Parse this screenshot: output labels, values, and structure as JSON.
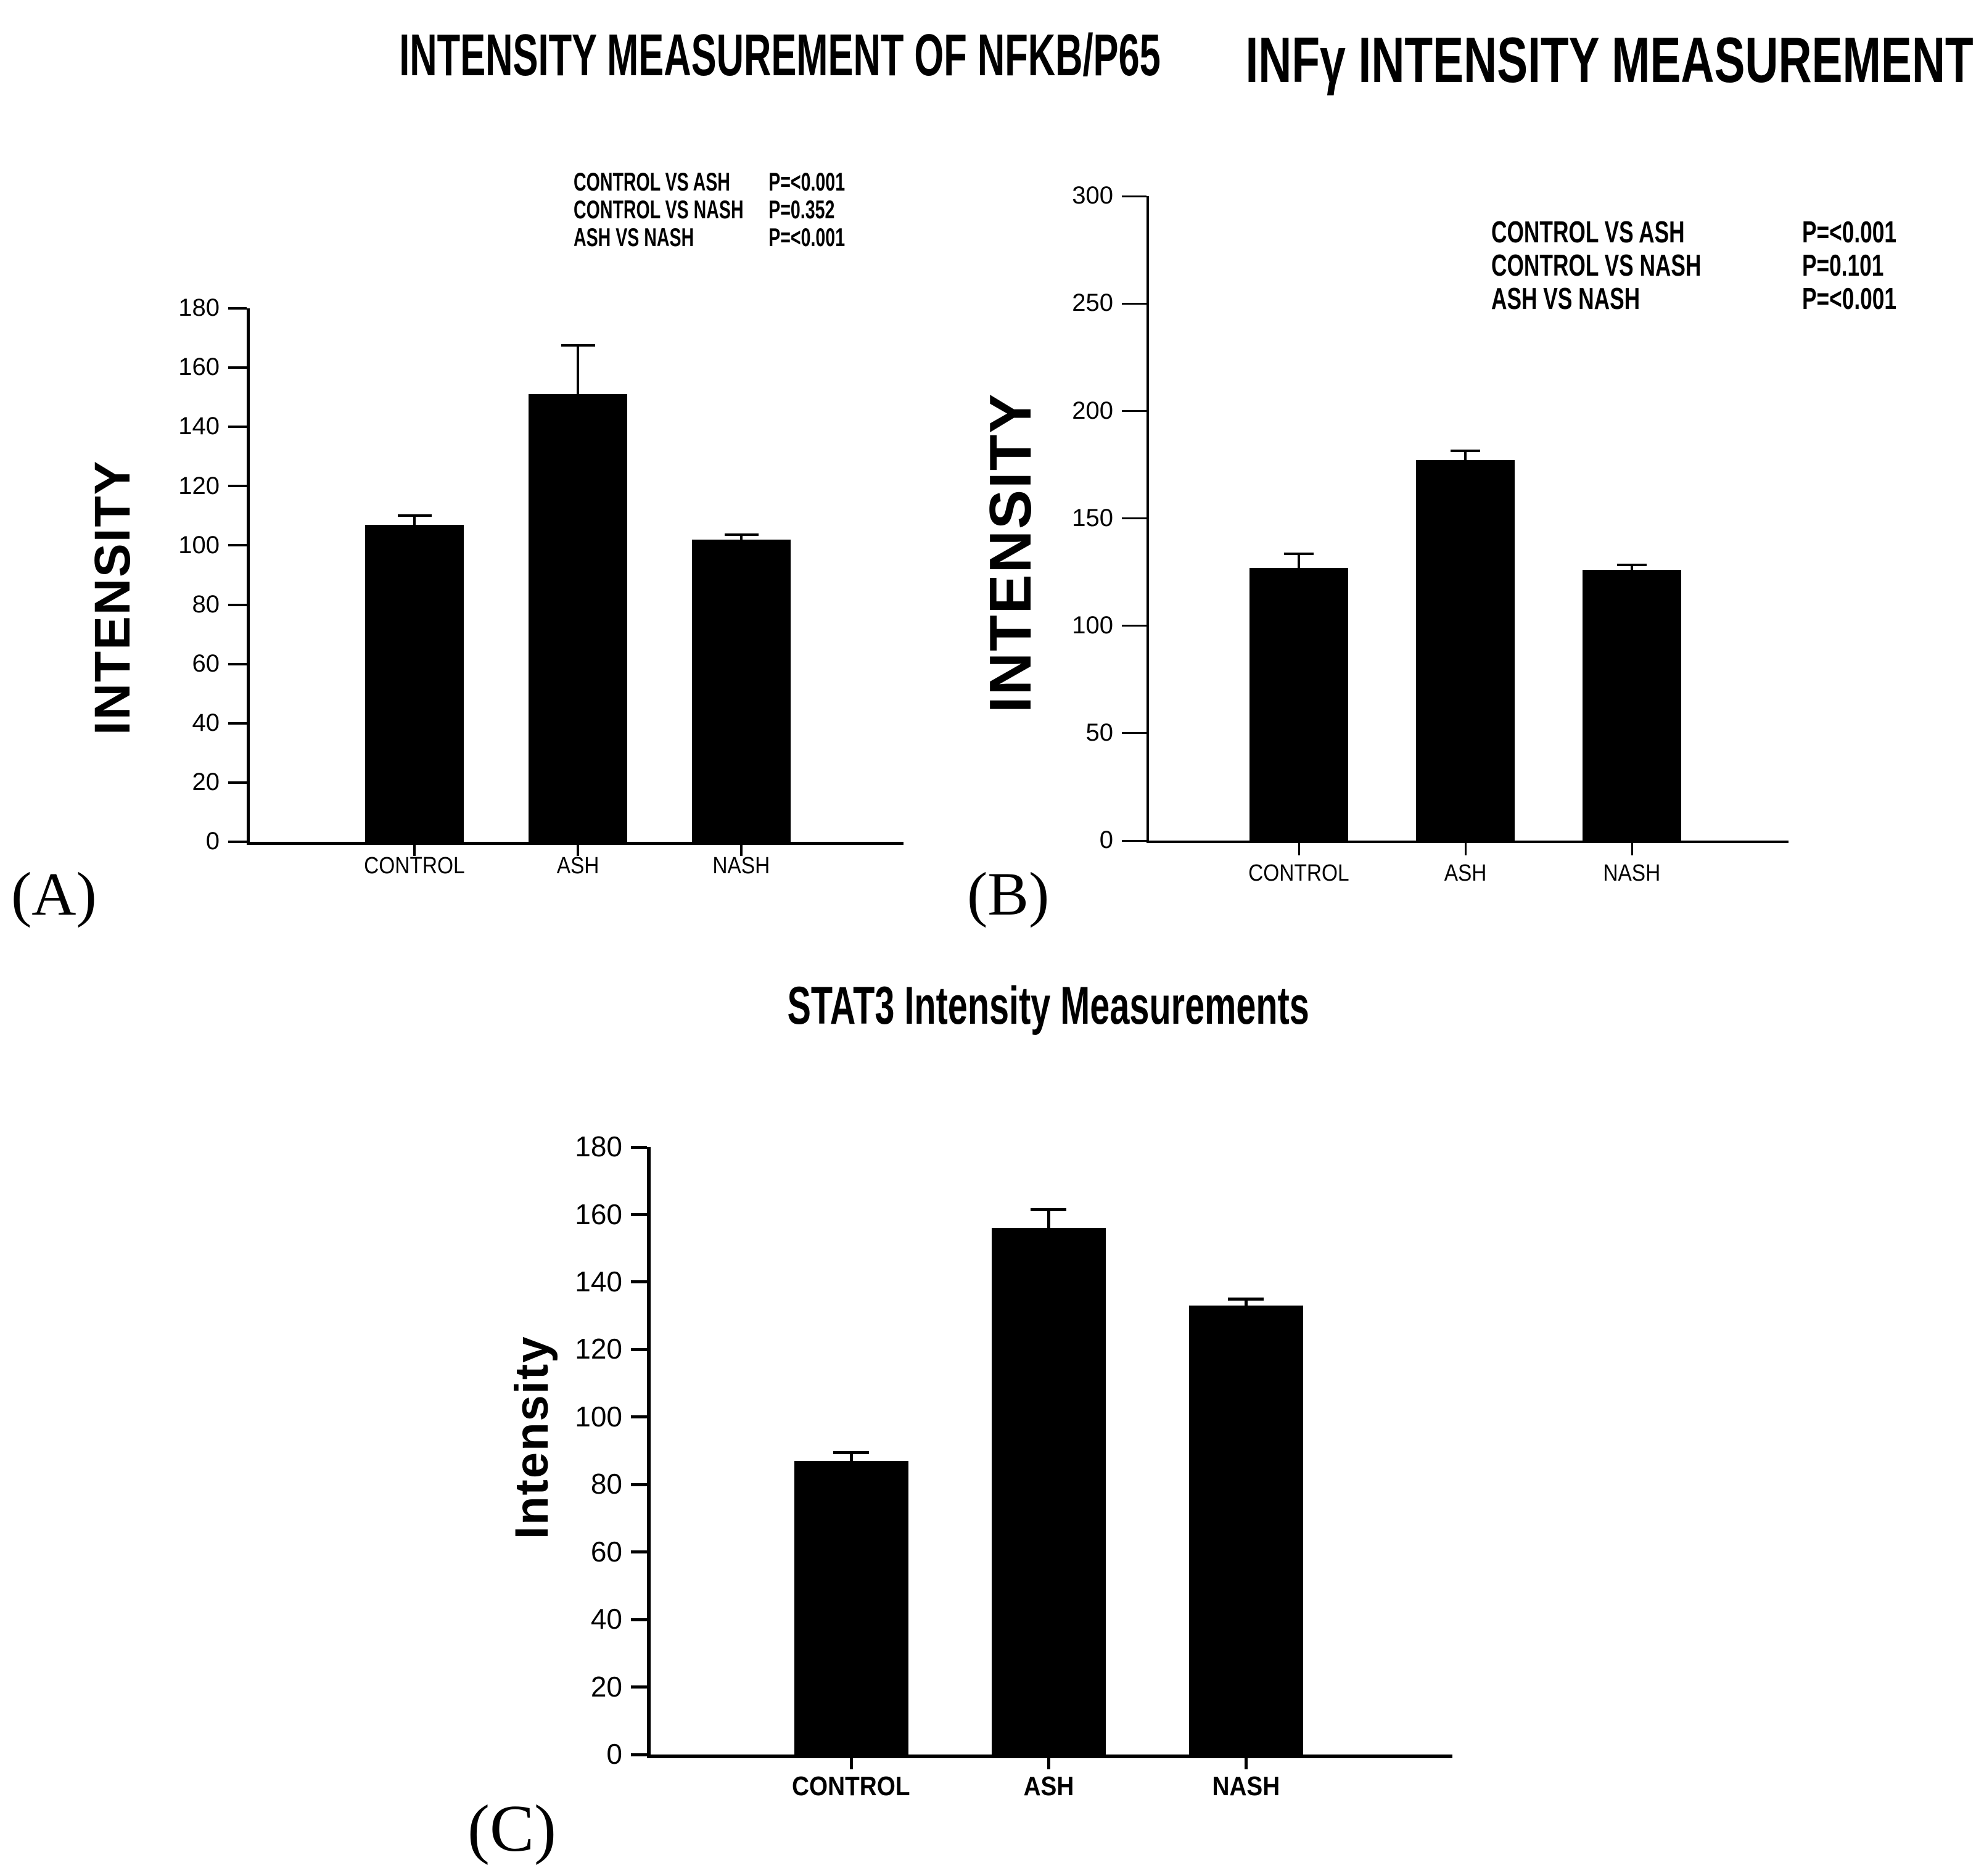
{
  "figure": {
    "background": "#ffffff",
    "ink": "#000000",
    "bar_color": "#000000"
  },
  "chart_data": [
    {
      "id": "A",
      "type": "bar",
      "panel_label": "(A)",
      "title": "INTENSITY MEASUREMENT OF NFKB/P65",
      "ylabel": "INTENSITY",
      "xlabel": "",
      "categories": [
        "CONTROL",
        "ASH",
        "NASH"
      ],
      "values": [
        107,
        151,
        102
      ],
      "errors": [
        3.5,
        17,
        2
      ],
      "ylim": [
        0,
        180
      ],
      "ytick_step": 20,
      "grid": false,
      "legend": null,
      "p_values": [
        {
          "comparison": "CONTROL VS ASH",
          "p": "P=<0.001"
        },
        {
          "comparison": "CONTROL VS NASH",
          "p": "P=0.352"
        },
        {
          "comparison": "ASH VS NASH",
          "p": "P=<0.001"
        }
      ]
    },
    {
      "id": "B",
      "type": "bar",
      "panel_label": "(B)",
      "title": "INFγ INTENSITY MEASUREMENT",
      "ylabel": "INTENSITY",
      "xlabel": "",
      "categories": [
        "CONTROL",
        "ASH",
        "NASH"
      ],
      "values": [
        127,
        177,
        126
      ],
      "errors": [
        7,
        5,
        3
      ],
      "ylim": [
        0,
        300
      ],
      "ytick_step": 50,
      "grid": false,
      "legend": null,
      "p_values": [
        {
          "comparison": "CONTROL VS ASH",
          "p": "P=<0.001"
        },
        {
          "comparison": "CONTROL VS NASH",
          "p": "P=0.101"
        },
        {
          "comparison": "ASH VS NASH",
          "p": "P=<0.001"
        }
      ]
    },
    {
      "id": "C",
      "type": "bar",
      "panel_label": "(C)",
      "title": "STAT3 Intensity Measurements",
      "ylabel": "Intensity",
      "xlabel": "",
      "categories": [
        "CONTROL",
        "ASH",
        "NASH"
      ],
      "values": [
        87,
        156,
        133
      ],
      "errors": [
        3,
        6,
        2.5
      ],
      "ylim": [
        0,
        180
      ],
      "ytick_step": 20,
      "grid": false,
      "legend": null,
      "p_values": []
    }
  ]
}
